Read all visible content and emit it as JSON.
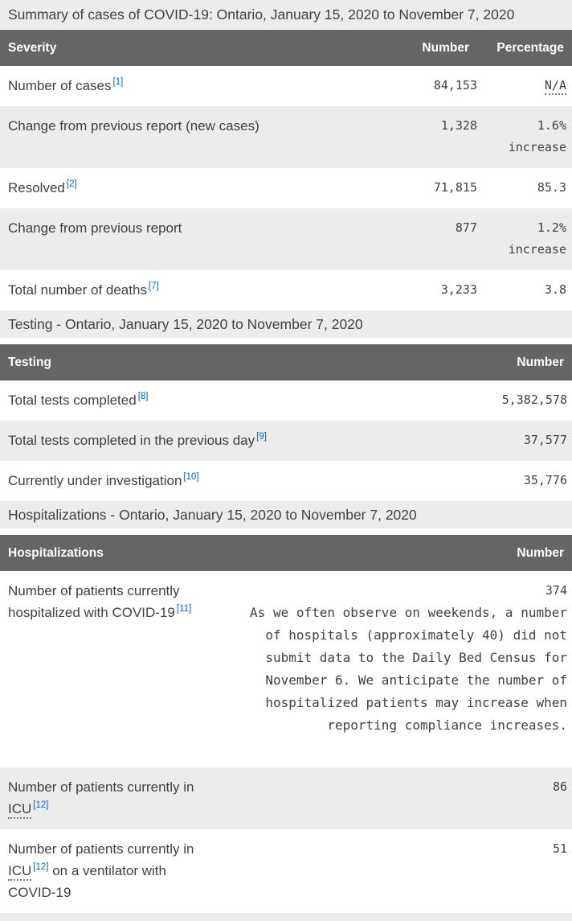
{
  "colors": {
    "header_bg": "#656565",
    "band_bg": "#ececec",
    "zebra_bg": "#ececec",
    "text": "#404040",
    "link_blue": "#0066cc"
  },
  "summary_table": {
    "caption": "Summary of cases of COVID-19: Ontario, January 15, 2020 to November 7, 2020",
    "columns": {
      "severity": "Severity",
      "number": "Number",
      "percentage": "Percentage"
    },
    "rows": [
      {
        "label": "Number of cases",
        "footnote": "[1]",
        "number": "84,153",
        "percentage": "N/A"
      },
      {
        "label": "Change from previous report (new cases)",
        "number": "1,328",
        "percentage": "1.6%",
        "percentage_note": "increase"
      },
      {
        "label": "Resolved",
        "footnote": "[2]",
        "number": "71,815",
        "percentage": "85.3"
      },
      {
        "label": "Change from previous report",
        "number": "877",
        "percentage": "1.2%",
        "percentage_note": "increase"
      },
      {
        "label": "Total number of deaths",
        "footnote": "[7]",
        "number": "3,233",
        "percentage": "3.8"
      }
    ]
  },
  "testing_section": {
    "heading": "Testing - Ontario, January 15, 2020 to November 7, 2020",
    "columns": {
      "testing": "Testing",
      "number": "Number"
    },
    "rows": [
      {
        "label": "Total tests completed",
        "footnote": "[8]",
        "number": "5,382,578"
      },
      {
        "label": "Total tests completed in the previous day",
        "footnote": "[9]",
        "number": "37,577"
      },
      {
        "label": "Currently under investigation",
        "footnote": "[10]",
        "number": "35,776"
      }
    ]
  },
  "hospitalizations_section": {
    "heading": "Hospitalizations - Ontario, January 15, 2020 to November 7, 2020",
    "columns": {
      "hospitalizations": "Hospitalizations",
      "number": "Number"
    },
    "rows": [
      {
        "label": "Number of patients currently hospitalized with COVID-19",
        "footnote": "[11]",
        "number": "374",
        "note": "As we often observe on weekends, a number of hospitals (approximately 40) did not submit data to the Daily Bed Census for November 6. We anticipate the number of hospitalized patients may increase when reporting compliance increases."
      },
      {
        "label_pre": "Number of patients currently in",
        "abbr": "ICU",
        "footnote": "[12]",
        "number": "86"
      },
      {
        "label_pre": "Number of patients currently in",
        "abbr": "ICU",
        "footnote": "[12]",
        "label_post": "on a ventilator with COVID-19",
        "number": "51"
      }
    ]
  }
}
